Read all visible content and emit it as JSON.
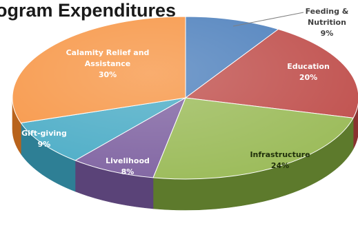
{
  "title": "ogram Expenditures",
  "chart_data": {
    "type": "pie",
    "slices": [
      {
        "name": "Feeding & Nutrition",
        "value": 9,
        "label": "9%",
        "color": "#4f81bd",
        "side": "#36598a"
      },
      {
        "name": "Education",
        "value": 20,
        "label": "20%",
        "color": "#c0504d",
        "side": "#8a3230"
      },
      {
        "name": "Infrastructure",
        "value": 24,
        "label": "24%",
        "color": "#9bbb59",
        "side": "#5d7a2c"
      },
      {
        "name": "Livelihood",
        "value": 8,
        "label": "8%",
        "color": "#8064a2",
        "side": "#5a4378"
      },
      {
        "name": "Gift-giving",
        "value": 9,
        "label": "9%",
        "color": "#4bacc6",
        "side": "#2e7f95"
      },
      {
        "name": "Calamity Relief and Assistance",
        "value": 30,
        "label": "30%",
        "color": "#f79646",
        "side": "#b8631c"
      }
    ]
  }
}
